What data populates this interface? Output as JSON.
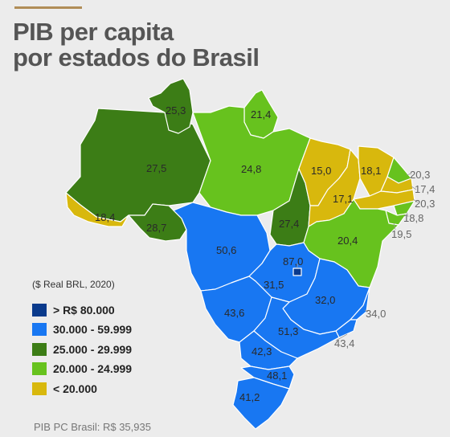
{
  "title": {
    "line1": "PIB per capita",
    "line2": "por estados do Brasil"
  },
  "colors": {
    "accent": "#b08d57",
    "gt80": "#0a3a8c",
    "c30_60": "#1877f2",
    "c25_30": "#3c7d16",
    "c20_25": "#67c21e",
    "lt20": "#d8b80d"
  },
  "legend": {
    "note": "($ Real BRL, 2020)",
    "items": [
      {
        "label": "> R$ 80.000",
        "color": "#0a3a8c"
      },
      {
        "label": "30.000 - 59.999",
        "color": "#1877f2"
      },
      {
        "label": "25.000 - 29.999",
        "color": "#3c7d16"
      },
      {
        "label": "20.000 - 24.999",
        "color": "#67c21e"
      },
      {
        "label": "< 20.000",
        "color": "#d8b80d"
      }
    ]
  },
  "states": {
    "rr": "25,3",
    "ap": "21,4",
    "am": "27,5",
    "pa": "24,8",
    "ac": "18,4",
    "ro": "28,7",
    "mt": "50,6",
    "to": "27,4",
    "ma": "15,0",
    "pi": "17,1",
    "ce": "18,1",
    "rn": "20,3",
    "pb": "17,4",
    "pe": "20,3",
    "al": "18,8",
    "se": "19,5",
    "ba": "20,4",
    "df": "87,0",
    "go": "31,5",
    "mg": "32,0",
    "es": "34,0",
    "rj": "43,4",
    "ms": "43,6",
    "sp": "51,3",
    "pr": "42,3",
    "sc": "48,1",
    "rs": "41,2"
  },
  "footer": "PIB PC Brasil: R$ 35,935"
}
